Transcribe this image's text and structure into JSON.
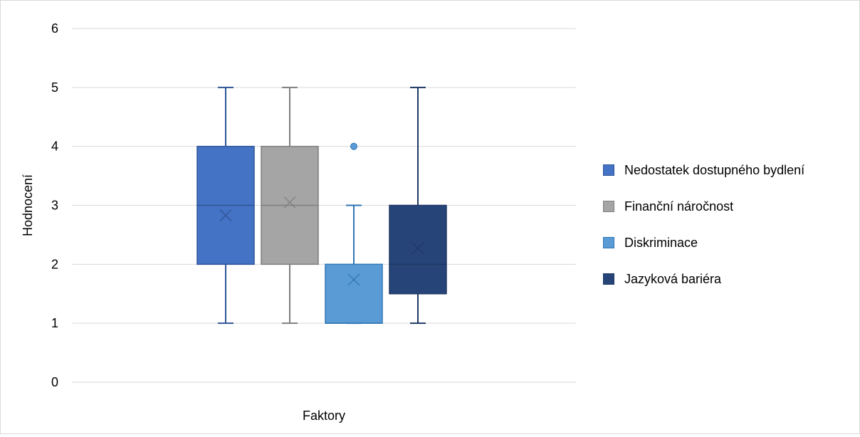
{
  "chart_data": {
    "type": "box",
    "xlabel": "Faktory",
    "ylabel": "Hodnocení",
    "ylim": [
      0,
      6
    ],
    "yticks": [
      0,
      1,
      2,
      3,
      4,
      5,
      6
    ],
    "grid": true,
    "legend_position": "right",
    "series": [
      {
        "name": "Nedostatek dostupného bydlení",
        "color": "#4472C4",
        "whisker_color": "#2F5597",
        "min": 1,
        "q1": 2,
        "median": 3,
        "q3": 4,
        "max": 5,
        "mean": 2.83,
        "outliers": []
      },
      {
        "name": "Finanční náročnost",
        "color": "#A5A5A5",
        "whisker_color": "#7F7F7F",
        "min": 1,
        "q1": 2,
        "median": 3,
        "q3": 4,
        "max": 5,
        "mean": 3.05,
        "outliers": []
      },
      {
        "name": "Diskriminace",
        "color": "#5B9BD5",
        "whisker_color": "#2E75B6",
        "min": 1,
        "q1": 1,
        "median": 1,
        "q3": 2,
        "max": 3,
        "mean": 1.74,
        "outliers": [
          4
        ]
      },
      {
        "name": "Jazyková bariéra",
        "color": "#264478",
        "whisker_color": "#1F3864",
        "min": 1,
        "q1": 1.5,
        "median": 2,
        "q3": 3,
        "max": 5,
        "mean": 2.27,
        "outliers": []
      }
    ]
  }
}
